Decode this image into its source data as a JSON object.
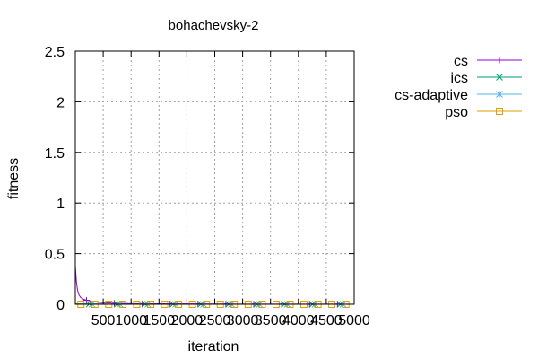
{
  "chart_data": {
    "type": "line",
    "title": "bohachevsky-2",
    "xlabel": "iteration",
    "ylabel": "fitness",
    "xlim": [
      0,
      5000
    ],
    "ylim": [
      0,
      2.5
    ],
    "xticks": [
      "500",
      "1000",
      "1500",
      "2000",
      "2500",
      "3000",
      "3500",
      "4000",
      "4500",
      "5000"
    ],
    "xtick_values": [
      500,
      1000,
      1500,
      2000,
      2500,
      3000,
      3500,
      4000,
      4500,
      5000
    ],
    "yticks": [
      "0",
      "0.5",
      "1",
      "1.5",
      "2",
      "2.5"
    ],
    "ytick_values": [
      0,
      0.5,
      1,
      1.5,
      2,
      2.5
    ],
    "grid": true,
    "legend_position": "top-right outside",
    "series": [
      {
        "name": "cs",
        "color": "#9400d3",
        "marker": "plus",
        "x": [
          0,
          20,
          40,
          60,
          80,
          100,
          150,
          200,
          300,
          400,
          500,
          700,
          1000,
          1500,
          2000,
          2500,
          3000,
          3500,
          4000,
          4500,
          5000
        ],
        "y": [
          0.38,
          0.22,
          0.14,
          0.1,
          0.08,
          0.065,
          0.05,
          0.04,
          0.03,
          0.02,
          0.015,
          0.01,
          0.006,
          0.004,
          0.003,
          0.002,
          0.0015,
          0.001,
          0.001,
          0.0008,
          0.0005
        ],
        "marker_x": [
          200,
          700,
          1200,
          1700,
          2200,
          2700,
          3200,
          3700,
          4200,
          4700
        ]
      },
      {
        "name": "ics",
        "color": "#009e73",
        "marker": "cross",
        "x": [
          0,
          250,
          500,
          1000,
          2000,
          3000,
          4000,
          5000
        ],
        "y": [
          0.004,
          0.003,
          0.002,
          0.001,
          0.0005,
          0.0003,
          0.0002,
          0.0001
        ],
        "marker_x": [
          250,
          750,
          1250,
          1750,
          2250,
          2750,
          3250,
          3750,
          4250,
          4750
        ]
      },
      {
        "name": "cs-adaptive",
        "color": "#56b4e9",
        "marker": "star",
        "x": [
          0,
          300,
          600,
          1000,
          2000,
          3000,
          4000,
          5000
        ],
        "y": [
          0.002,
          0.0015,
          0.001,
          0.0008,
          0.0004,
          0.0002,
          0.0001,
          0.0001
        ],
        "marker_x": [
          300,
          800,
          1300,
          1800,
          2300,
          2800,
          3300,
          3800,
          4300,
          4800
        ]
      },
      {
        "name": "pso",
        "color": "#e69f00",
        "marker": "square",
        "x": [
          0,
          500,
          1000,
          2000,
          3000,
          4000,
          5000
        ],
        "y": [
          0,
          0,
          0,
          0,
          0,
          0,
          0
        ],
        "marker_x": [
          100,
          350,
          600,
          850,
          1100,
          1350,
          1600,
          1850,
          2100,
          2350,
          2600,
          2850,
          3100,
          3350,
          3600,
          3850,
          4100,
          4350,
          4600,
          4850
        ]
      }
    ]
  }
}
